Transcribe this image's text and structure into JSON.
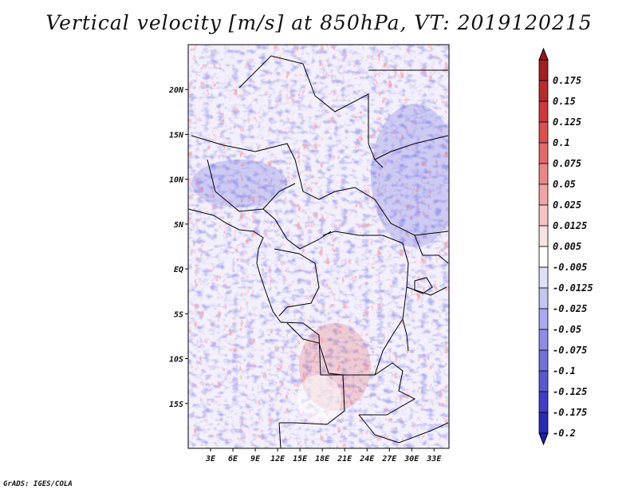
{
  "title": "Vertical velocity [m/s] at 850hPa, VT: 2019120215",
  "credit": "GrADS: IGES/COLA",
  "map": {
    "lon_range": [
      0,
      35
    ],
    "lat_range": [
      -20,
      25
    ],
    "lon_ticks": [
      {
        "value": 3,
        "label": "3E"
      },
      {
        "value": 6,
        "label": "6E"
      },
      {
        "value": 9,
        "label": "9E"
      },
      {
        "value": 12,
        "label": "12E"
      },
      {
        "value": 15,
        "label": "15E"
      },
      {
        "value": 18,
        "label": "18E"
      },
      {
        "value": 21,
        "label": "21E"
      },
      {
        "value": 24,
        "label": "24E"
      },
      {
        "value": 27,
        "label": "27E"
      },
      {
        "value": 30,
        "label": "30E"
      },
      {
        "value": 33,
        "label": "33E"
      }
    ],
    "lat_ticks": [
      {
        "value": 20,
        "label": "20N"
      },
      {
        "value": 15,
        "label": "15N"
      },
      {
        "value": 10,
        "label": "10N"
      },
      {
        "value": 5,
        "label": "5N"
      },
      {
        "value": 0,
        "label": "EQ"
      },
      {
        "value": -5,
        "label": "5S"
      },
      {
        "value": -10,
        "label": "10S"
      },
      {
        "value": -15,
        "label": "15S"
      }
    ]
  },
  "colorbar": [
    {
      "label": "0.175",
      "color": "#a51e22"
    },
    {
      "label": "0.15",
      "color": "#bb2a2c"
    },
    {
      "label": "0.125",
      "color": "#d0383a"
    },
    {
      "label": "0.1",
      "color": "#dd4f50"
    },
    {
      "label": "0.075",
      "color": "#e56969"
    },
    {
      "label": "0.05",
      "color": "#ec8686"
    },
    {
      "label": "0.025",
      "color": "#f2a4a4"
    },
    {
      "label": "0.0125",
      "color": "#f7c3c3"
    },
    {
      "label": "0.005",
      "color": "#fbe1e1"
    },
    {
      "label": "-0.005",
      "color": "#ffffff"
    },
    {
      "label": "-0.0125",
      "color": "#e0e0fa"
    },
    {
      "label": "-0.025",
      "color": "#c5c5f4"
    },
    {
      "label": "-0.05",
      "color": "#a9a9ee"
    },
    {
      "label": "-0.075",
      "color": "#8d8de6"
    },
    {
      "label": "-0.1",
      "color": "#7272dd"
    },
    {
      "label": "-0.125",
      "color": "#5858d3"
    },
    {
      "label": "-0.175",
      "color": "#3f3fc6"
    },
    {
      "label": "-0.2",
      "color": "#2a2ab6"
    }
  ],
  "colorbar_ends": {
    "top": "#9c1518",
    "bottom": "#1f1fa8"
  }
}
